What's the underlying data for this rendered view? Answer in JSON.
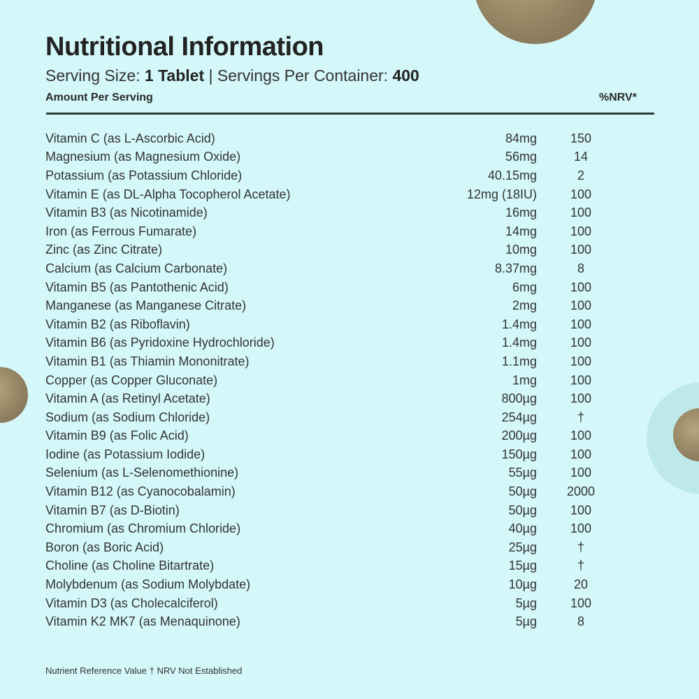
{
  "title": "Nutritional Information",
  "serving": {
    "size_label": "Serving Size:",
    "size_value": "1 Tablet",
    "separator": "|",
    "per_container_label": "Servings Per Container:",
    "per_container_value": "400"
  },
  "columns": {
    "amount": "Amount Per Serving",
    "nrv": "%NRV*"
  },
  "rows": [
    [
      "Vitamin C (as L-Ascorbic Acid)",
      "84mg",
      "150"
    ],
    [
      "Magnesium (as Magnesium Oxide)",
      "56mg",
      "14"
    ],
    [
      "Potassium (as Potassium Chloride)",
      "40.15mg",
      "2"
    ],
    [
      "Vitamin E (as DL-Alpha Tocopherol Acetate)",
      "12mg (18IU)",
      "100"
    ],
    [
      "Vitamin B3 (as Nicotinamide)",
      "16mg",
      "100"
    ],
    [
      "Iron (as Ferrous Fumarate)",
      "14mg",
      "100"
    ],
    [
      "Zinc (as Zinc Citrate)",
      "10mg",
      "100"
    ],
    [
      "Calcium (as Calcium Carbonate)",
      "8.37mg",
      "8"
    ],
    [
      "Vitamin B5 (as Pantothenic Acid)",
      "6mg",
      "100"
    ],
    [
      "Manganese (as Manganese Citrate)",
      "2mg",
      "100"
    ],
    [
      "Vitamin B2 (as Riboflavin)",
      "1.4mg",
      "100"
    ],
    [
      "Vitamin B6 (as Pyridoxine Hydrochloride)",
      "1.4mg",
      "100"
    ],
    [
      "Vitamin B1 (as Thiamin Mononitrate)",
      "1.1mg",
      "100"
    ],
    [
      "Copper (as Copper Gluconate)",
      "1mg",
      "100"
    ],
    [
      "Vitamin A (as Retinyl Acetate)",
      "800µg",
      "100"
    ],
    [
      "Sodium (as Sodium Chloride)",
      "254µg",
      "†"
    ],
    [
      "Vitamin B9 (as Folic Acid)",
      "200µg",
      "100"
    ],
    [
      "Iodine (as Potassium Iodide)",
      "150µg",
      "100"
    ],
    [
      "Selenium (as L-Selenomethionine)",
      "55µg",
      "100"
    ],
    [
      "Vitamin B12 (as Cyanocobalamin)",
      "50µg",
      "2000"
    ],
    [
      "Vitamin B7 (as D-Biotin)",
      "50µg",
      "100"
    ],
    [
      "Chromium (as Chromium Chloride)",
      "40µg",
      "100"
    ],
    [
      "Boron (as Boric Acid)",
      "25µg",
      "†"
    ],
    [
      "Choline (as Choline Bitartrate)",
      "15µg",
      "†"
    ],
    [
      "Molybdenum (as Sodium Molybdate)",
      "10µg",
      "20"
    ],
    [
      "Vitamin D3 (as Cholecalciferol)",
      "5µg",
      "100"
    ],
    [
      "Vitamin K2 MK7 (as Menaquinone)",
      "5µg",
      "8"
    ]
  ],
  "footnote": "Nutrient Reference Value † NRV Not Established"
}
